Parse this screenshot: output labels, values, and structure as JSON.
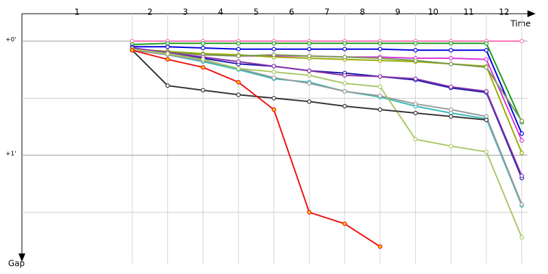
{
  "chart_data": {
    "type": "line",
    "categories": [
      "1",
      "2",
      "3",
      "4",
      "5",
      "6",
      "7",
      "8",
      "9",
      "10",
      "11",
      "12"
    ],
    "x_label": "Time",
    "y_label": "Gap",
    "ylim": [
      -0.24,
      1.95
    ],
    "y_inverted": true,
    "yticks": [
      {
        "value": 0,
        "label": "+0'"
      },
      {
        "value": 1,
        "label": "+1'"
      }
    ],
    "minor_yticks": [
      0.5,
      1.5
    ],
    "grid": true,
    "series": [
      {
        "color": "#ff77b5",
        "values": [
          0,
          0,
          0,
          0,
          0,
          0,
          0,
          0,
          0,
          0,
          0,
          0
        ]
      },
      {
        "color": "#1a9c1a",
        "values": [
          0.03,
          0.02,
          0.02,
          0.02,
          0.02,
          0.02,
          0.02,
          0.02,
          0.02,
          0.02,
          0.02,
          0.71
        ]
      },
      {
        "color": "#0000dd",
        "values": [
          0.05,
          0.05,
          0.06,
          0.07,
          0.07,
          0.07,
          0.07,
          0.07,
          0.08,
          0.08,
          0.08,
          0.81
        ]
      },
      {
        "color": "#dd33dd",
        "values": [
          0.08,
          0.1,
          0.12,
          0.13,
          0.13,
          0.13,
          0.14,
          0.14,
          0.15,
          0.15,
          0.16,
          0.87
        ]
      },
      {
        "color": "#99aa00",
        "values": [
          0.07,
          0.09,
          0.11,
          0.12,
          0.14,
          0.15,
          0.16,
          0.17,
          0.18,
          0.2,
          0.22,
          0.98
        ]
      },
      {
        "color": "#779955",
        "values": [
          0.08,
          0.1,
          0.12,
          0.13,
          0.12,
          0.13,
          0.14,
          0.15,
          0.17,
          0.2,
          0.23,
          0.7
        ]
      },
      {
        "color": "#1a1aaa",
        "values": [
          0.06,
          0.1,
          0.15,
          0.2,
          0.22,
          0.26,
          0.28,
          0.31,
          0.34,
          0.41,
          0.45,
          1.2
        ]
      },
      {
        "color": "#8833aa",
        "values": [
          0.06,
          0.1,
          0.14,
          0.18,
          0.22,
          0.26,
          0.3,
          0.31,
          0.33,
          0.4,
          0.44,
          1.18
        ]
      },
      {
        "color": "#33bbbb",
        "values": [
          0.08,
          0.12,
          0.18,
          0.25,
          0.33,
          0.36,
          0.44,
          0.49,
          0.57,
          0.63,
          0.68,
          1.44
        ]
      },
      {
        "color": "#999999",
        "values": [
          0.08,
          0.12,
          0.17,
          0.24,
          0.32,
          0.37,
          0.44,
          0.48,
          0.55,
          0.6,
          0.66,
          1.43
        ]
      },
      {
        "color": "#a8c868",
        "values": [
          0.07,
          0.11,
          0.16,
          0.24,
          0.27,
          0.3,
          0.37,
          0.4,
          0.86,
          0.92,
          0.97,
          1.72
        ]
      },
      {
        "color": "#333333",
        "values": [
          0.08,
          0.39,
          0.43,
          0.47,
          0.5,
          0.53,
          0.57,
          0.6,
          0.63,
          0.66,
          0.69,
          null
        ]
      },
      {
        "color": "#ee1111",
        "marker_color": "#ffcc00",
        "values": [
          0.08,
          0.16,
          0.23,
          0.36,
          0.6,
          1.5,
          1.6,
          1.8,
          null,
          null,
          null,
          null
        ]
      }
    ]
  }
}
